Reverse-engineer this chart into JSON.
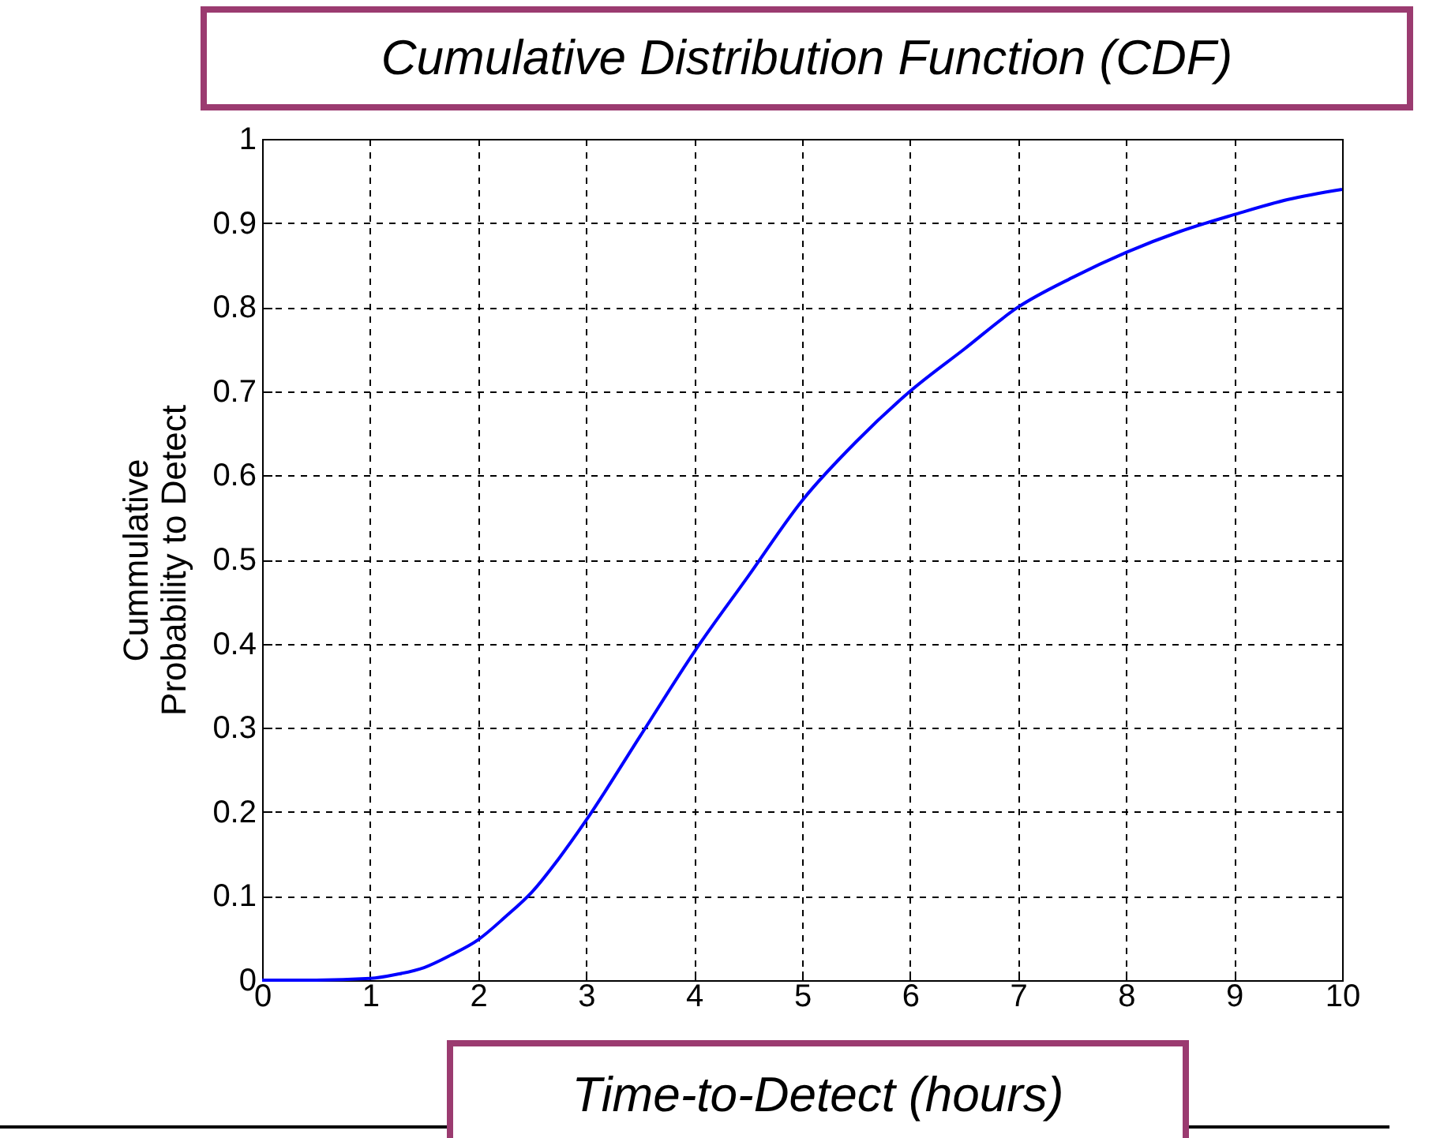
{
  "chart_data": {
    "type": "line",
    "title": "Cumulative Distribution Function (CDF)",
    "xlabel": "Time-to-Detect (hours)",
    "ylabel": "Cummulative\nProbability to Detect",
    "x": [
      0,
      0.5,
      1,
      1.25,
      1.5,
      1.75,
      2,
      2.25,
      2.5,
      2.75,
      3,
      3.5,
      4,
      4.5,
      5,
      5.5,
      6,
      6.5,
      7,
      7.5,
      8,
      8.5,
      9,
      9.5,
      10
    ],
    "series": [
      {
        "color": "#0000ff",
        "values": [
          0,
          0,
          0.002,
          0.007,
          0.015,
          0.03,
          0.048,
          0.075,
          0.105,
          0.145,
          0.19,
          0.29,
          0.39,
          0.48,
          0.57,
          0.64,
          0.7,
          0.75,
          0.8,
          0.835,
          0.865,
          0.89,
          0.91,
          0.928,
          0.94
        ]
      }
    ],
    "xlim": [
      0,
      10
    ],
    "ylim": [
      0,
      1
    ],
    "xticks": [
      0,
      1,
      2,
      3,
      4,
      5,
      6,
      7,
      8,
      9,
      10
    ],
    "yticks": [
      0,
      0.1,
      0.2,
      0.3,
      0.4,
      0.5,
      0.6,
      0.7,
      0.8,
      0.9,
      1
    ],
    "grid": true
  }
}
